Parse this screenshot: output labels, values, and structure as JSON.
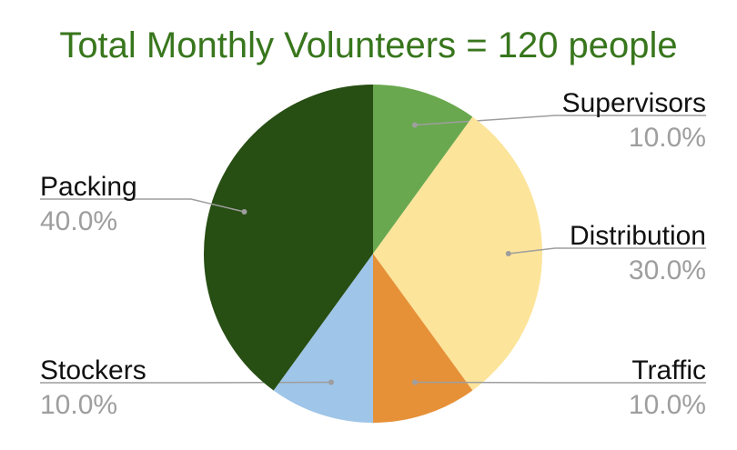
{
  "chart_data": {
    "type": "pie",
    "title": "Total Monthly Volunteers = 120 people",
    "slices": [
      {
        "name": "Supervisors",
        "value": 10.0,
        "label": "10.0%",
        "color": "#6aa84f"
      },
      {
        "name": "Distribution",
        "value": 30.0,
        "label": "30.0%",
        "color": "#fce49a"
      },
      {
        "name": "Traffic",
        "value": 10.0,
        "label": "10.0%",
        "color": "#e69138"
      },
      {
        "name": "Stockers",
        "value": 10.0,
        "label": "10.0%",
        "color": "#9fc5e8"
      },
      {
        "name": "Packing",
        "value": 40.0,
        "label": "40.0%",
        "color": "#274e13"
      }
    ],
    "start_angle": "12 o'clock",
    "direction": "clockwise",
    "title_color": "#38761d",
    "label_color": "#111111",
    "percent_color": "#9e9e9e",
    "leader_line_color": "#9e9e9e"
  }
}
